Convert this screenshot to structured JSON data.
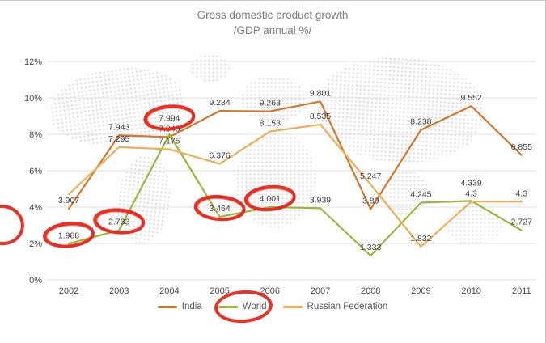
{
  "chart_data": {
    "type": "line",
    "title": "Gross domestic product growth",
    "subtitle": "/GDP annual %/",
    "categories": [
      "2002",
      "2003",
      "2004",
      "2005",
      "2006",
      "2007",
      "2008",
      "2009",
      "2010",
      "2011"
    ],
    "series": [
      {
        "name": "India",
        "color": "#d4772e",
        "values": [
          3.907,
          7.943,
          7.848,
          9.284,
          9.263,
          9.801,
          3.89,
          8.238,
          9.552,
          6.855
        ],
        "labels": [
          "3.907",
          "7.943",
          "7.848",
          "9.284",
          "9.263",
          "9.801",
          "3.89",
          "8.238",
          "9.552",
          "6.855"
        ]
      },
      {
        "name": "World",
        "color": "#9cb63b",
        "values": [
          1.988,
          2.733,
          7.994,
          3.464,
          4.001,
          3.939,
          1.333,
          4.245,
          4.339,
          2.727
        ],
        "labels": [
          "1.988",
          "2.733",
          "7.994",
          "3.464",
          "4.001",
          "3.939",
          "1.333",
          "4.245",
          "4.339",
          "2.727"
        ]
      },
      {
        "name": "Russian Federation",
        "color": "#efae55",
        "values": [
          4.7,
          7.295,
          7.175,
          6.376,
          8.153,
          8.535,
          5.247,
          1.832,
          4.3,
          4.3
        ],
        "labels": [
          null,
          "7.295",
          "7.175",
          "6.376",
          "8.153",
          "8.535",
          "5.247",
          "1.832",
          "4.3",
          "4.3"
        ]
      }
    ],
    "ylim": [
      0,
      12
    ],
    "ytick_step": 2,
    "ytick_suffix": "%",
    "grid": true,
    "legend_position": "bottom",
    "annotations": {
      "color": "#e8261a",
      "style": "hand-drawn red marker circles",
      "circled_data_labels": [
        {
          "series": "World",
          "year": "2002",
          "label": "1.988"
        },
        {
          "series": "World",
          "year": "2003",
          "label": "2.733"
        },
        {
          "series": "World",
          "year": "2004",
          "label": "7.994"
        },
        {
          "series": "World",
          "year": "2005",
          "label": "3.464"
        },
        {
          "series": "World",
          "year": "2006",
          "label": "4.001"
        }
      ],
      "circled_legend_item": "World",
      "partial_mark_left_edge": true
    }
  }
}
